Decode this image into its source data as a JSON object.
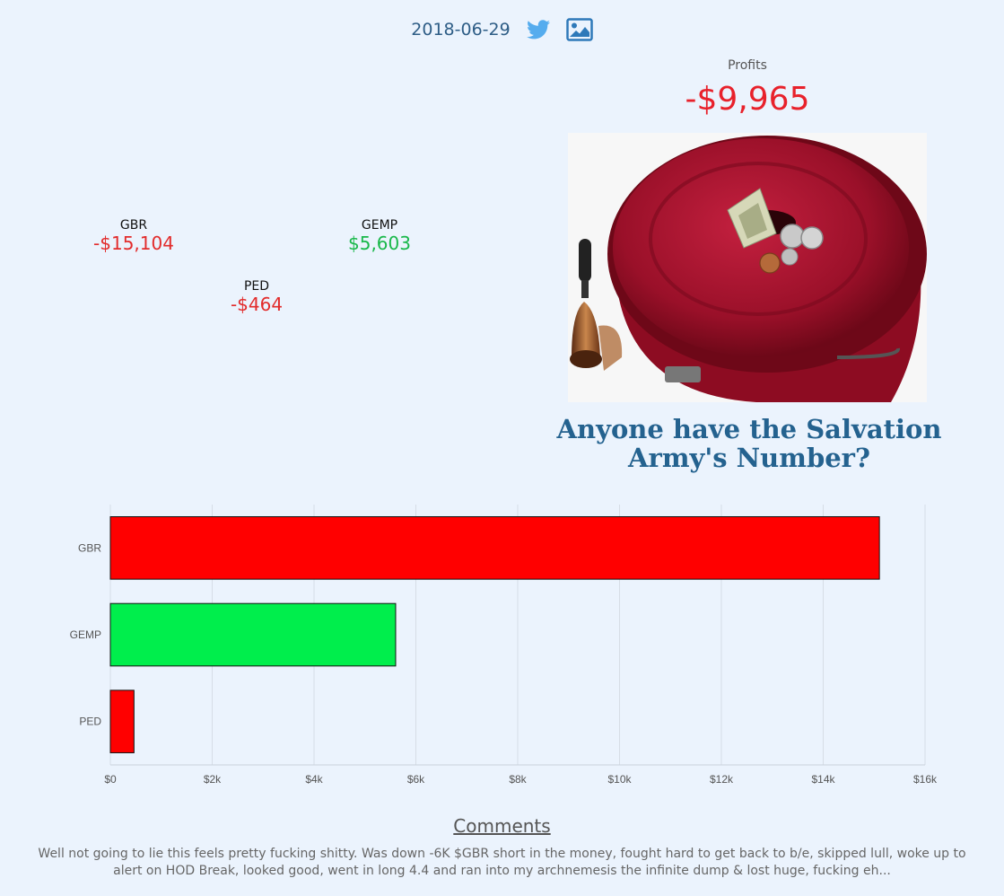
{
  "header": {
    "date": "2018-06-29"
  },
  "icons": {
    "twitter": "twitter-icon",
    "image": "image-icon"
  },
  "profits": {
    "label": "Profits",
    "value": "-$9,965"
  },
  "tickers": [
    {
      "symbol": "GBR",
      "value": "-$15,104",
      "sign": "neg"
    },
    {
      "symbol": "GEMP",
      "value": "$5,603",
      "sign": "pos"
    },
    {
      "symbol": "PED",
      "value": "-$464",
      "sign": "neg"
    }
  ],
  "headline": "Anyone have the Salvation Army's Number?",
  "colors": {
    "loss": "#ff0000",
    "gain": "#00ee4c",
    "headline": "#24628f"
  },
  "chart_data": {
    "type": "bar",
    "orientation": "horizontal",
    "categories": [
      "GBR",
      "GEMP",
      "PED"
    ],
    "values": [
      15104,
      5603,
      464
    ],
    "colors": [
      "#ff0000",
      "#00ee4c",
      "#ff0000"
    ],
    "xlim": [
      0,
      16000
    ],
    "xticks": [
      "$0",
      "$2k",
      "$4k",
      "$6k",
      "$8k",
      "$10k",
      "$12k",
      "$14k",
      "$16k"
    ],
    "grid": true
  },
  "comments": {
    "title": "Comments",
    "text": "Well not going to lie this feels pretty fucking shitty. Was down -6K $GBR short in the money, fought hard to get back to b/e, skipped lull, woke up to alert on HOD Break, looked good, went in long 4.4 and ran into my archnemesis the infinite dump & lost huge, fucking eh..."
  }
}
